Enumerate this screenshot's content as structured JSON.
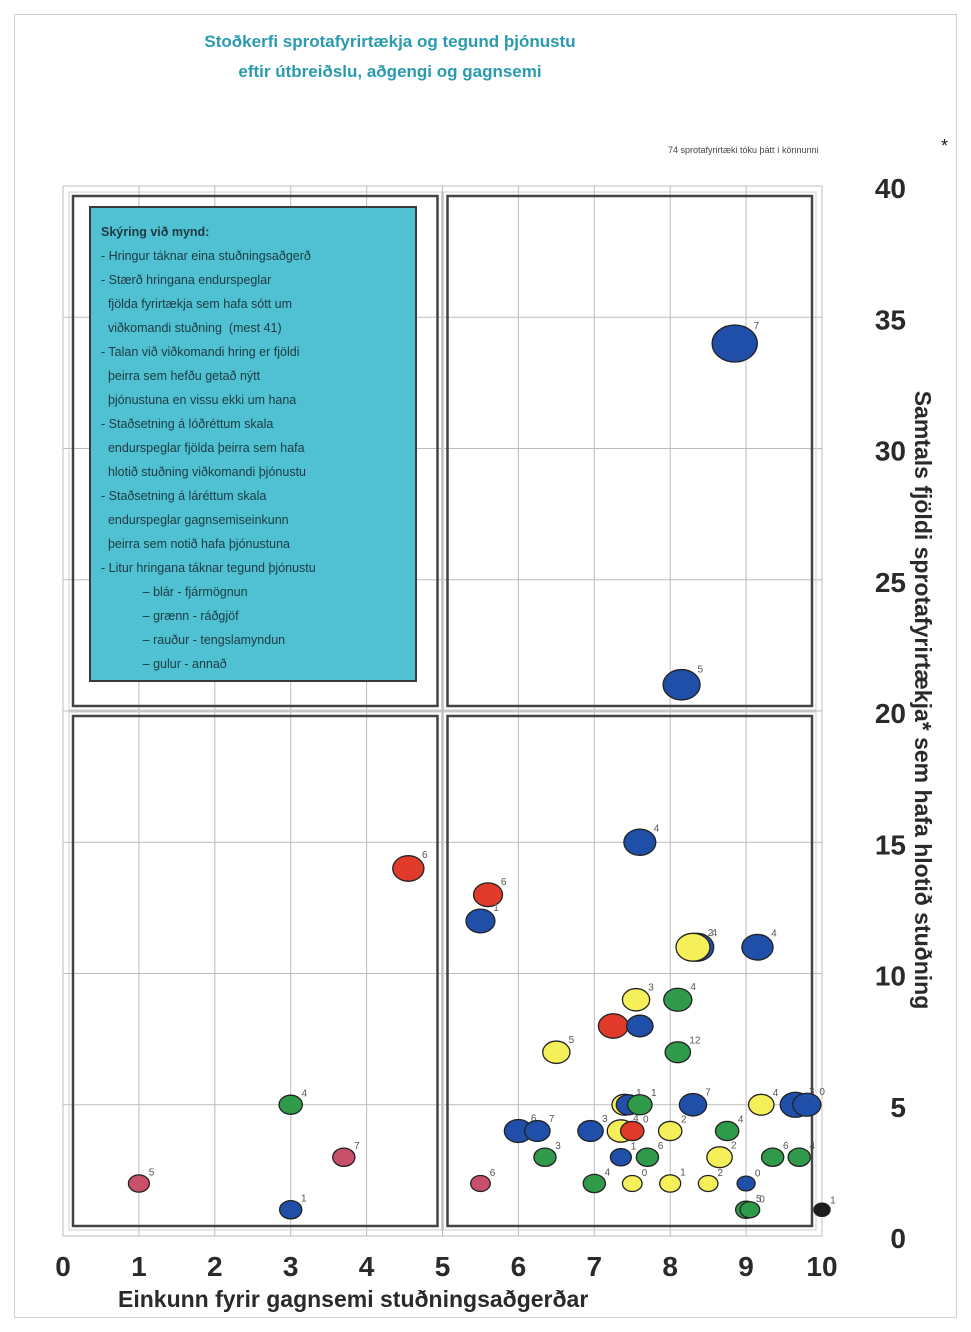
{
  "title_line1": "Stoðkerfi sprotafyrirtækja og tegund þjónustu",
  "title_line2": "eftir útbreiðslu, aðgengi og gagnsemi",
  "note": "74 sprotafyrirtæki tóku þátt í könnunni",
  "star": "*",
  "legend": {
    "heading": "Skýring við mynd:",
    "lines": [
      "- Hringur táknar eina stuðningsaðgerð",
      "- Stærð hringana endurspeglar",
      "  fjölda fyrirtækja sem hafa sótt um",
      "  viðkomandi stuðning  (mest 41)",
      "- Talan við viðkomandi hring er fjöldi",
      "  þeirra sem hefðu getað nýtt",
      "  þjónustuna en vissu ekki um hana",
      "- Staðsetning á lóðréttum skala",
      "  endurspeglar fjölda þeirra sem hafa",
      "  hlotið stuðning viðkomandi þjónustu",
      "- Staðsetning á láréttum skala",
      "  endurspeglar gagnsemiseinkunn",
      "  þeirra sem notið hafa þjónustuna",
      "- Litur hringana táknar tegund þjónustu",
      "            – blár - fjármögnun",
      "            – grænn - ráðgjöf",
      "            – rauður - tengslamyndun",
      "            – gulur - annað"
    ]
  },
  "chart_data": {
    "type": "scatter",
    "xlabel": "Einkunn fyrir gagnsemi stuðningsaðgerðar",
    "ylabel": "Samtals fjöldi sprotafyrirtækja* sem hafa hlotið stuðning",
    "xlim": [
      0,
      10
    ],
    "ylim": [
      0,
      40
    ],
    "xticks": [
      0,
      1,
      2,
      3,
      4,
      5,
      6,
      7,
      8,
      9,
      10
    ],
    "yticks": [
      0,
      5,
      10,
      15,
      20,
      25,
      30,
      35,
      40
    ],
    "grid": true,
    "colors": {
      "blue": "#1f4fa8",
      "green": "#2e9a4a",
      "red": "#e03a2a",
      "yellow": "#f5ef5a",
      "pink": "#c8506a",
      "black": "#1b1b1b"
    },
    "points": [
      {
        "x": 8.85,
        "y": 34,
        "size": 41,
        "color": "blue",
        "label": "7"
      },
      {
        "x": 8.15,
        "y": 21,
        "size": 25,
        "color": "blue",
        "label": "5"
      },
      {
        "x": 7.6,
        "y": 15,
        "size": 17,
        "color": "blue",
        "label": "4"
      },
      {
        "x": 4.55,
        "y": 14,
        "size": 16,
        "color": "red",
        "label": "6"
      },
      {
        "x": 5.6,
        "y": 13,
        "size": 13,
        "color": "red",
        "label": "6"
      },
      {
        "x": 5.5,
        "y": 12,
        "size": 13,
        "color": "blue",
        "label": "1"
      },
      {
        "x": 8.35,
        "y": 11,
        "size": 20,
        "color": "blue",
        "label": "4"
      },
      {
        "x": 8.3,
        "y": 11,
        "size": 20,
        "color": "yellow",
        "label": "2"
      },
      {
        "x": 9.15,
        "y": 11,
        "size": 16,
        "color": "blue",
        "label": "4"
      },
      {
        "x": 7.55,
        "y": 9,
        "size": 11,
        "color": "yellow",
        "label": "3"
      },
      {
        "x": 8.1,
        "y": 9,
        "size": 12,
        "color": "green",
        "label": "4"
      },
      {
        "x": 7.25,
        "y": 8,
        "size": 14,
        "color": "red",
        "label": ""
      },
      {
        "x": 7.6,
        "y": 8,
        "size": 10,
        "color": "blue",
        "label": ""
      },
      {
        "x": 6.5,
        "y": 7,
        "size": 11,
        "color": "yellow",
        "label": "5"
      },
      {
        "x": 8.1,
        "y": 7,
        "size": 9,
        "color": "green",
        "label": "12"
      },
      {
        "x": 8.3,
        "y": 5,
        "size": 11,
        "color": "blue",
        "label": "7"
      },
      {
        "x": 7.4,
        "y": 5,
        "size": 9,
        "color": "yellow",
        "label": "1"
      },
      {
        "x": 7.45,
        "y": 5,
        "size": 8,
        "color": "blue",
        "label": ""
      },
      {
        "x": 7.6,
        "y": 5,
        "size": 8,
        "color": "green",
        "label": "1"
      },
      {
        "x": 9.2,
        "y": 5,
        "size": 9,
        "color": "yellow",
        "label": "4"
      },
      {
        "x": 9.65,
        "y": 5,
        "size": 15,
        "color": "blue",
        "label": "3"
      },
      {
        "x": 9.8,
        "y": 5,
        "size": 12,
        "color": "blue",
        "label": "0"
      },
      {
        "x": 6.0,
        "y": 4,
        "size": 12,
        "color": "blue",
        "label": "6"
      },
      {
        "x": 6.25,
        "y": 4,
        "size": 9,
        "color": "blue",
        "label": "7"
      },
      {
        "x": 6.95,
        "y": 4,
        "size": 9,
        "color": "blue",
        "label": "3"
      },
      {
        "x": 7.35,
        "y": 4,
        "size": 11,
        "color": "yellow",
        "label": "4"
      },
      {
        "x": 7.5,
        "y": 4,
        "size": 7,
        "color": "red",
        "label": "0"
      },
      {
        "x": 8.0,
        "y": 4,
        "size": 7,
        "color": "yellow",
        "label": "2"
      },
      {
        "x": 8.75,
        "y": 4,
        "size": 7,
        "color": "green",
        "label": "4"
      },
      {
        "x": 6.35,
        "y": 3,
        "size": 6,
        "color": "green",
        "label": "3"
      },
      {
        "x": 7.35,
        "y": 3,
        "size": 5,
        "color": "blue",
        "label": "1"
      },
      {
        "x": 7.7,
        "y": 3,
        "size": 6,
        "color": "green",
        "label": "6"
      },
      {
        "x": 8.65,
        "y": 3,
        "size": 9,
        "color": "yellow",
        "label": "2"
      },
      {
        "x": 9.35,
        "y": 3,
        "size": 6,
        "color": "green",
        "label": "6"
      },
      {
        "x": 9.7,
        "y": 3,
        "size": 6,
        "color": "green",
        "label": "4"
      },
      {
        "x": 5.5,
        "y": 2,
        "size": 4,
        "color": "pink",
        "label": "6"
      },
      {
        "x": 7.0,
        "y": 2,
        "size": 6,
        "color": "green",
        "label": "4"
      },
      {
        "x": 7.5,
        "y": 2,
        "size": 4,
        "color": "yellow",
        "label": "0"
      },
      {
        "x": 8.0,
        "y": 2,
        "size": 5,
        "color": "yellow",
        "label": "1"
      },
      {
        "x": 8.5,
        "y": 2,
        "size": 4,
        "color": "yellow",
        "label": "2"
      },
      {
        "x": 9.0,
        "y": 2,
        "size": 3,
        "color": "blue",
        "label": "0"
      },
      {
        "x": 9.0,
        "y": 1,
        "size": 5,
        "color": "green",
        "label": "5"
      },
      {
        "x": 9.05,
        "y": 1,
        "size": 4,
        "color": "green",
        "label": "0"
      },
      {
        "x": 10.0,
        "y": 1,
        "size": 2,
        "color": "black",
        "label": "1"
      },
      {
        "x": 1.0,
        "y": 2,
        "size": 5,
        "color": "pink",
        "label": "5"
      },
      {
        "x": 3.0,
        "y": 5,
        "size": 7,
        "color": "green",
        "label": "4"
      },
      {
        "x": 3.7,
        "y": 3,
        "size": 6,
        "color": "pink",
        "label": "7"
      },
      {
        "x": 3.0,
        "y": 1,
        "size": 6,
        "color": "blue",
        "label": "1"
      }
    ]
  }
}
